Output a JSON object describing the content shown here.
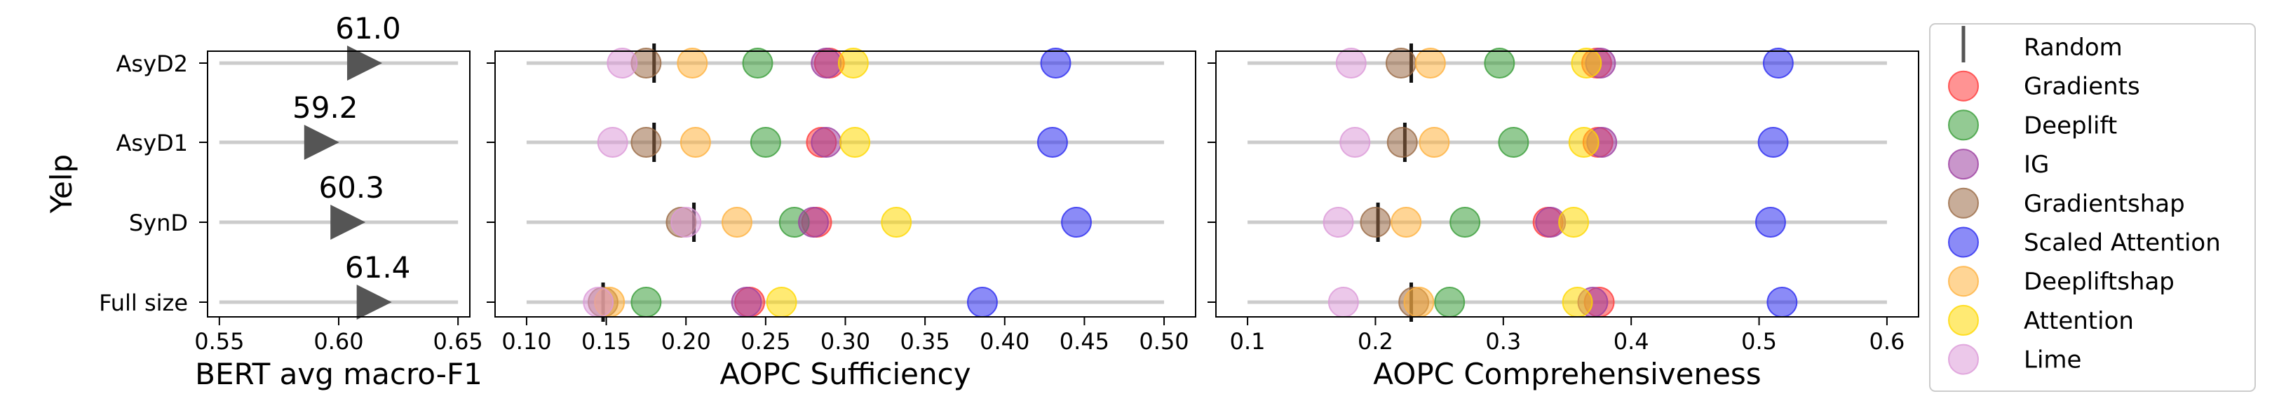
{
  "group_label": "Yelp",
  "rows": [
    "AsyD2",
    "AsyD1",
    "SynD",
    "Full size"
  ],
  "chart_data": [
    {
      "type": "scatter",
      "xlabel": "BERT avg macro-F1",
      "xlim": [
        0.55,
        0.65
      ],
      "xticks": [
        0.55,
        0.6,
        0.65
      ],
      "xtick_labels": [
        "0.55",
        "0.60",
        "0.65"
      ],
      "rows": [
        "AsyD2",
        "AsyD1",
        "SynD",
        "Full size"
      ],
      "points": [
        {
          "row": "AsyD2",
          "x": 0.61,
          "label": "61.0"
        },
        {
          "row": "AsyD1",
          "x": 0.592,
          "label": "59.2"
        },
        {
          "row": "SynD",
          "x": 0.603,
          "label": "60.3"
        },
        {
          "row": "Full size",
          "x": 0.614,
          "label": "61.4"
        }
      ]
    },
    {
      "type": "scatter",
      "xlabel": "AOPC Sufficiency",
      "xlim": [
        0.1,
        0.5
      ],
      "xticks": [
        0.1,
        0.15,
        0.2,
        0.25,
        0.3,
        0.35,
        0.4,
        0.45,
        0.5
      ],
      "xtick_labels": [
        "0.10",
        "0.15",
        "0.20",
        "0.25",
        "0.30",
        "0.35",
        "0.40",
        "0.45",
        "0.50"
      ],
      "rows": [
        "AsyD2",
        "AsyD1",
        "SynD",
        "Full size"
      ],
      "random": [
        0.18,
        0.18,
        0.205,
        0.148
      ],
      "series": [
        {
          "name": "Gradients",
          "values": [
            0.29,
            0.285,
            0.282,
            0.24
          ]
        },
        {
          "name": "Deeplift",
          "values": [
            0.245,
            0.25,
            0.268,
            0.175
          ]
        },
        {
          "name": "IG",
          "values": [
            0.288,
            0.288,
            0.28,
            0.238
          ]
        },
        {
          "name": "Gradientshap",
          "values": [
            0.175,
            0.175,
            0.197,
            0.148
          ]
        },
        {
          "name": "Scaled Attention",
          "values": [
            0.432,
            0.43,
            0.445,
            0.386
          ]
        },
        {
          "name": "Deepliftshap",
          "values": [
            0.204,
            0.206,
            0.232,
            0.152
          ]
        },
        {
          "name": "Attention",
          "values": [
            0.305,
            0.306,
            0.332,
            0.26
          ]
        },
        {
          "name": "Lime",
          "values": [
            0.16,
            0.154,
            0.2,
            0.145
          ]
        }
      ]
    },
    {
      "type": "scatter",
      "xlabel": "AOPC Comprehensiveness",
      "xlim": [
        0.1,
        0.6
      ],
      "xticks": [
        0.1,
        0.2,
        0.3,
        0.4,
        0.5,
        0.6
      ],
      "xtick_labels": [
        "0.1",
        "0.2",
        "0.3",
        "0.4",
        "0.5",
        "0.6"
      ],
      "rows": [
        "AsyD2",
        "AsyD1",
        "SynD",
        "Full size"
      ],
      "random": [
        0.228,
        0.223,
        0.202,
        0.228
      ],
      "series": [
        {
          "name": "Gradients",
          "values": [
            0.373,
            0.374,
            0.335,
            0.375
          ]
        },
        {
          "name": "Deeplift",
          "values": [
            0.297,
            0.308,
            0.27,
            0.258
          ]
        },
        {
          "name": "IG",
          "values": [
            0.376,
            0.377,
            0.337,
            0.37
          ]
        },
        {
          "name": "Gradientshap",
          "values": [
            0.22,
            0.221,
            0.2,
            0.23
          ]
        },
        {
          "name": "Scaled Attention",
          "values": [
            0.515,
            0.511,
            0.509,
            0.518
          ]
        },
        {
          "name": "Deepliftshap",
          "values": [
            0.243,
            0.246,
            0.224,
            0.234
          ]
        },
        {
          "name": "Attention",
          "values": [
            0.365,
            0.363,
            0.355,
            0.358
          ]
        },
        {
          "name": "Lime",
          "values": [
            0.181,
            0.184,
            0.171,
            0.175
          ]
        }
      ]
    }
  ],
  "legend": {
    "items": [
      {
        "name": "Random",
        "marker": "line",
        "color": "#555555"
      },
      {
        "name": "Gradients",
        "marker": "circle",
        "color": "#ff3b3b"
      },
      {
        "name": "Deeplift",
        "marker": "circle",
        "color": "#3a9e3a"
      },
      {
        "name": "IG",
        "marker": "circle",
        "color": "#9c3fa0"
      },
      {
        "name": "Gradientshap",
        "marker": "circle",
        "color": "#9a6a45"
      },
      {
        "name": "Scaled Attention",
        "marker": "circle",
        "color": "#2c2cf0"
      },
      {
        "name": "Deepliftshap",
        "marker": "circle",
        "color": "#ffb23e"
      },
      {
        "name": "Attention",
        "marker": "circle",
        "color": "#ffd800"
      },
      {
        "name": "Lime",
        "marker": "circle",
        "color": "#dc9ad8"
      }
    ]
  }
}
